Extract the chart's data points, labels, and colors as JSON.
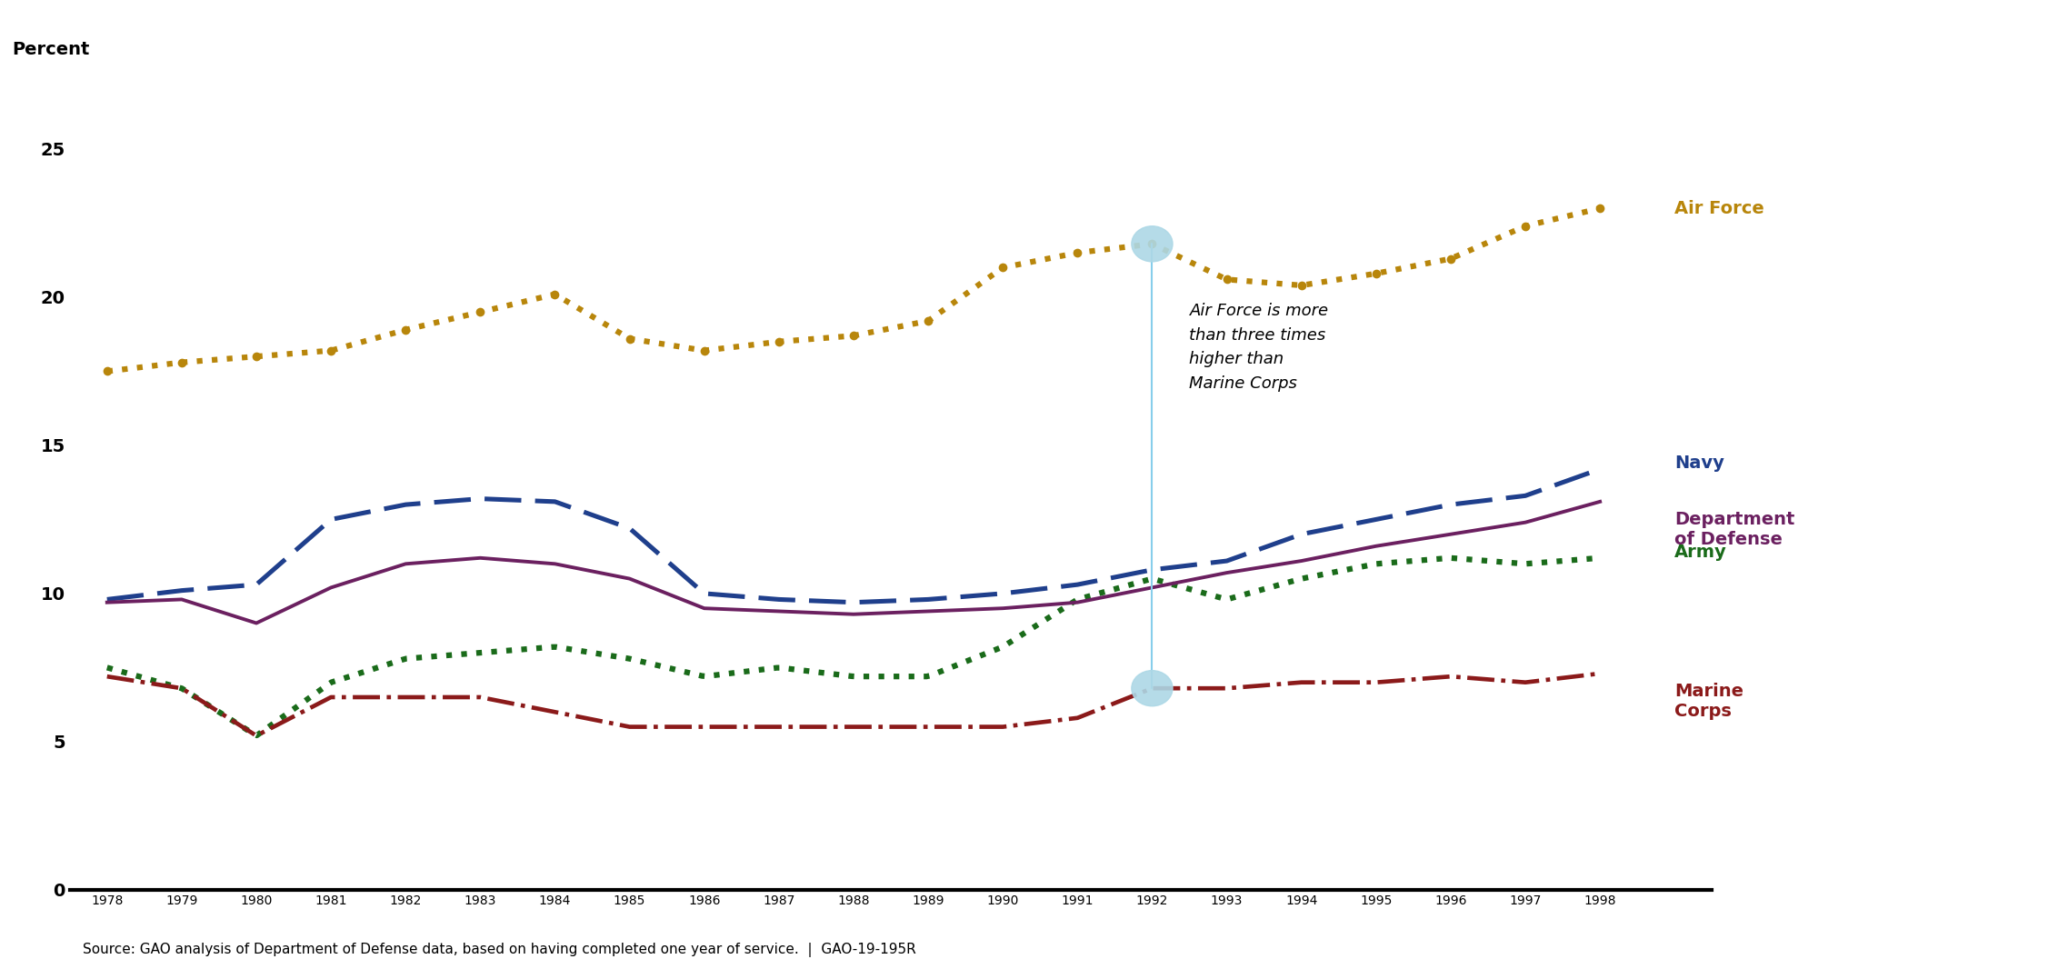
{
  "years": [
    1978,
    1979,
    1980,
    1981,
    1982,
    1983,
    1984,
    1985,
    1986,
    1987,
    1988,
    1989,
    1990,
    1991,
    1992,
    1993,
    1994,
    1995,
    1996,
    1997,
    1998
  ],
  "air_force": [
    17.5,
    17.8,
    18.0,
    18.2,
    18.9,
    19.5,
    20.1,
    18.6,
    18.2,
    18.5,
    18.7,
    19.2,
    21.0,
    21.5,
    21.8,
    20.6,
    20.4,
    20.8,
    21.3,
    22.4,
    23.0
  ],
  "navy": [
    9.8,
    10.1,
    10.3,
    12.5,
    13.0,
    13.2,
    13.1,
    12.2,
    10.0,
    9.8,
    9.7,
    9.8,
    10.0,
    10.3,
    10.8,
    11.1,
    12.0,
    12.5,
    13.0,
    13.3,
    14.2
  ],
  "dod": [
    9.7,
    9.8,
    9.0,
    10.2,
    11.0,
    11.2,
    11.0,
    10.5,
    9.5,
    9.4,
    9.3,
    9.4,
    9.5,
    9.7,
    10.2,
    10.7,
    11.1,
    11.6,
    12.0,
    12.4,
    13.1
  ],
  "army": [
    7.5,
    6.8,
    5.2,
    7.0,
    7.8,
    8.0,
    8.2,
    7.8,
    7.2,
    7.5,
    7.2,
    7.2,
    8.2,
    9.8,
    10.5,
    9.8,
    10.5,
    11.0,
    11.2,
    11.0,
    11.2
  ],
  "marine_corps": [
    7.2,
    6.8,
    5.2,
    6.5,
    6.5,
    6.5,
    6.0,
    5.5,
    5.5,
    5.5,
    5.5,
    5.5,
    5.5,
    5.8,
    6.8,
    6.8,
    7.0,
    7.0,
    7.2,
    7.0,
    7.3
  ],
  "air_force_color": "#B8860B",
  "navy_color": "#1F3F8C",
  "dod_color": "#6B2060",
  "army_color": "#1A6B1A",
  "marine_corps_color": "#8B1A1A",
  "annotation_year": 1992,
  "annotation_text": "Air Force is more\nthan three times\nhigher than\nMarine Corps",
  "ylabel": "Percent",
  "yticks": [
    0,
    5,
    10,
    15,
    20,
    25
  ],
  "source_text": "Source: GAO analysis of Department of Defense data, based on having completed one year of service.  |  GAO-19-195R",
  "background_color": "#FFFFFF",
  "xlim_left": 1977.5,
  "xlim_right": 1999.5,
  "ylim_top": 27
}
